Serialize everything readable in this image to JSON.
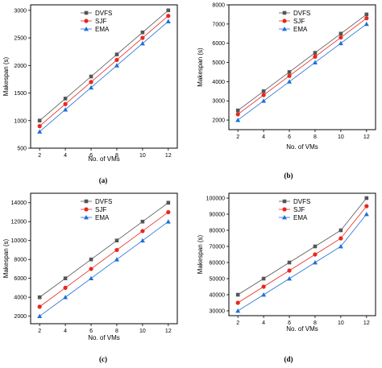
{
  "chart_data": [
    {
      "type": "line",
      "panel_label": "(a)",
      "xlabel": "No. of VMs",
      "ylabel": "Makespan (s)",
      "x": [
        2,
        4,
        6,
        8,
        10,
        12
      ],
      "xticks": [
        "2",
        "4",
        "6",
        "8",
        "10",
        "12"
      ],
      "ylim": [
        500,
        3100
      ],
      "yticks": [
        "500",
        "1000",
        "1500",
        "2000",
        "2500",
        "3000"
      ],
      "legend_position": "top-left",
      "series": [
        {
          "name": "DVFS",
          "values": [
            1000,
            1400,
            1800,
            2200,
            2600,
            3000
          ],
          "color": "#555555",
          "marker": "square"
        },
        {
          "name": "SJF",
          "values": [
            900,
            1300,
            1700,
            2100,
            2500,
            2900
          ],
          "color": "#e8281e",
          "marker": "circle"
        },
        {
          "name": "EMA",
          "values": [
            800,
            1200,
            1600,
            2000,
            2400,
            2800
          ],
          "color": "#1f6fd6",
          "marker": "triangle"
        }
      ]
    },
    {
      "type": "line",
      "panel_label": "(b)",
      "xlabel": "No. of VMs",
      "ylabel": "Makespan (s)",
      "x": [
        2,
        4,
        6,
        8,
        10,
        12
      ],
      "xticks": [
        "2",
        "4",
        "6",
        "8",
        "10",
        "12"
      ],
      "ylim": [
        1500,
        8000
      ],
      "yticks": [
        "2000",
        "3000",
        "4000",
        "5000",
        "6000",
        "7000",
        "8000"
      ],
      "legend_position": "top-left",
      "series": [
        {
          "name": "DVFS",
          "values": [
            2500,
            3500,
            4500,
            5500,
            6500,
            7500
          ],
          "color": "#555555",
          "marker": "square"
        },
        {
          "name": "SJF",
          "values": [
            2300,
            3300,
            4300,
            5300,
            6300,
            7300
          ],
          "color": "#e8281e",
          "marker": "circle"
        },
        {
          "name": "EMA",
          "values": [
            2000,
            3000,
            4000,
            5000,
            6000,
            7000
          ],
          "color": "#1f6fd6",
          "marker": "triangle"
        }
      ]
    },
    {
      "type": "line",
      "panel_label": "(c)",
      "xlabel": "No. of VMs",
      "ylabel": "Makespan (s)",
      "x": [
        2,
        4,
        6,
        8,
        10,
        12
      ],
      "xticks": [
        "2",
        "4",
        "6",
        "8",
        "10",
        "12"
      ],
      "ylim": [
        1200,
        15000
      ],
      "yticks": [
        "2000",
        "4000",
        "6000",
        "8000",
        "10000",
        "12000",
        "14000"
      ],
      "legend_position": "top-left",
      "series": [
        {
          "name": "DVFS",
          "values": [
            4000,
            6000,
            8000,
            10000,
            12000,
            14000
          ],
          "color": "#555555",
          "marker": "square"
        },
        {
          "name": "SJF",
          "values": [
            3000,
            5000,
            7000,
            9000,
            11000,
            13000
          ],
          "color": "#e8281e",
          "marker": "circle"
        },
        {
          "name": "EMA",
          "values": [
            2000,
            4000,
            6000,
            8000,
            10000,
            12000
          ],
          "color": "#1f6fd6",
          "marker": "triangle"
        }
      ]
    },
    {
      "type": "line",
      "panel_label": "(d)",
      "xlabel": "No. of VMs",
      "ylabel": "Makespan (s)",
      "x": [
        2,
        4,
        6,
        8,
        10,
        12
      ],
      "xticks": [
        "2",
        "4",
        "6",
        "8",
        "10",
        "12"
      ],
      "ylim": [
        27000,
        103000
      ],
      "yticks": [
        "30000",
        "40000",
        "50000",
        "60000",
        "70000",
        "80000",
        "90000",
        "100000"
      ],
      "legend_position": "top-left",
      "series": [
        {
          "name": "DVFS",
          "values": [
            40000,
            50000,
            60000,
            70000,
            80000,
            100000
          ],
          "color": "#555555",
          "marker": "square"
        },
        {
          "name": "SJF",
          "values": [
            35000,
            45000,
            55000,
            65000,
            75000,
            95000
          ],
          "color": "#e8281e",
          "marker": "circle"
        },
        {
          "name": "EMA",
          "values": [
            30000,
            40000,
            50000,
            60000,
            70000,
            90000
          ],
          "color": "#1f6fd6",
          "marker": "triangle"
        }
      ]
    }
  ]
}
